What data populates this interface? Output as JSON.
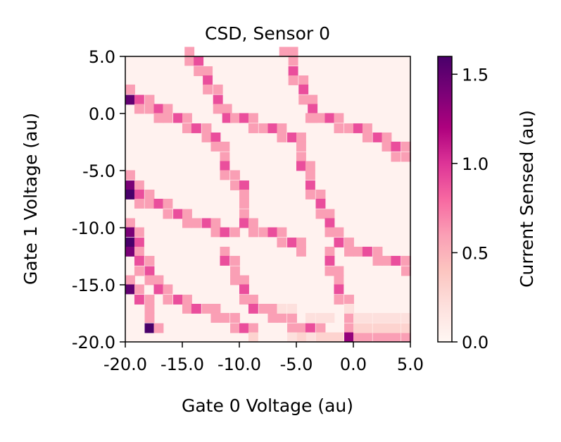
{
  "chart_data": {
    "type": "heatmap",
    "title": "CSD, Sensor 0",
    "xlabel": "Gate 0 Voltage (au)",
    "ylabel": "Gate 1 Voltage (au)",
    "x_range": [
      -20.0,
      5.0
    ],
    "y_range": [
      -20.0,
      5.0
    ],
    "x_ticks": [
      "-20.0",
      "-15.0",
      "-10.0",
      "-5.0",
      "0.0",
      "5.0"
    ],
    "y_ticks": [
      "-20.0",
      "-15.0",
      "-10.0",
      "-5.0",
      "0.0",
      "5.0"
    ],
    "grid": false,
    "colormap": "RdPu",
    "colorbar": {
      "label": "Current Sensed (au)",
      "range": [
        0.0,
        1.6
      ],
      "ticks": [
        "0.0",
        "0.5",
        "1.0",
        "1.5"
      ],
      "stops": [
        "#fff7f3",
        "#fde0dd",
        "#fcc5c0",
        "#fa9fb5",
        "#f768a1",
        "#dd3497",
        "#ae017e",
        "#7a0177",
        "#49006a"
      ]
    },
    "cell_size": 0.8333,
    "background_value": 0.04,
    "cells": [
      [
        -14.8,
        5.0,
        0.6
      ],
      [
        -14.8,
        4.2,
        0.6
      ],
      [
        -14.0,
        4.2,
        0.9
      ],
      [
        -14.0,
        3.3,
        0.6
      ],
      [
        -13.2,
        3.3,
        0.6
      ],
      [
        -13.2,
        2.5,
        0.9
      ],
      [
        -13.2,
        1.7,
        0.6
      ],
      [
        -12.3,
        1.7,
        0.6
      ],
      [
        -12.3,
        0.8,
        0.9
      ],
      [
        -12.3,
        0.0,
        0.6
      ],
      [
        -11.5,
        0.0,
        0.6
      ],
      [
        -11.5,
        -0.8,
        0.9
      ],
      [
        -10.7,
        -0.8,
        0.6
      ],
      [
        -6.5,
        5.0,
        0.6
      ],
      [
        -5.7,
        5.0,
        0.6
      ],
      [
        -5.7,
        4.2,
        0.6
      ],
      [
        -5.7,
        3.3,
        0.9
      ],
      [
        -5.7,
        2.5,
        0.6
      ],
      [
        -4.8,
        2.5,
        0.6
      ],
      [
        -4.8,
        1.7,
        0.9
      ],
      [
        -4.8,
        0.8,
        0.6
      ],
      [
        -4.0,
        0.8,
        0.6
      ],
      [
        -4.0,
        0.0,
        0.9
      ],
      [
        -4.0,
        -0.8,
        0.6
      ],
      [
        -20.0,
        1.7,
        0.6
      ],
      [
        -20.0,
        0.8,
        1.5
      ],
      [
        -19.2,
        0.8,
        0.9
      ],
      [
        -18.3,
        0.8,
        0.6
      ],
      [
        -19.2,
        0.0,
        0.6
      ],
      [
        -18.3,
        0.0,
        0.6
      ],
      [
        -17.5,
        0.0,
        0.9
      ],
      [
        -16.7,
        0.0,
        0.6
      ],
      [
        -17.5,
        -0.8,
        0.6
      ],
      [
        -16.7,
        -0.8,
        0.6
      ],
      [
        -15.8,
        -0.8,
        0.9
      ],
      [
        -15.0,
        -0.8,
        0.6
      ],
      [
        -15.0,
        -1.7,
        0.6
      ],
      [
        -14.2,
        -1.7,
        0.9
      ],
      [
        -13.3,
        -1.7,
        0.6
      ],
      [
        -13.3,
        -2.5,
        0.6
      ],
      [
        -12.5,
        -2.5,
        0.9
      ],
      [
        -12.5,
        -3.3,
        0.6
      ],
      [
        -11.7,
        -3.3,
        0.6
      ],
      [
        -10.8,
        -0.8,
        0.6
      ],
      [
        -10.0,
        -0.8,
        0.9
      ],
      [
        -9.2,
        -0.8,
        0.6
      ],
      [
        -9.2,
        -1.7,
        0.6
      ],
      [
        -8.3,
        -1.7,
        0.6
      ],
      [
        -7.5,
        -1.7,
        0.9
      ],
      [
        -6.7,
        -1.7,
        0.6
      ],
      [
        -6.7,
        -2.5,
        0.6
      ],
      [
        -5.8,
        -2.5,
        0.9
      ],
      [
        -5.0,
        -2.5,
        0.6
      ],
      [
        -5.0,
        -3.3,
        0.6
      ],
      [
        -4.2,
        -0.8,
        0.6
      ],
      [
        -3.3,
        -0.8,
        0.6
      ],
      [
        -2.5,
        -0.8,
        0.9
      ],
      [
        -1.7,
        -0.8,
        0.6
      ],
      [
        -1.7,
        -1.7,
        0.6
      ],
      [
        -0.8,
        -1.7,
        0.6
      ],
      [
        0.0,
        -1.7,
        0.9
      ],
      [
        0.8,
        -1.7,
        0.6
      ],
      [
        0.8,
        -2.5,
        0.6
      ],
      [
        1.7,
        -2.5,
        0.9
      ],
      [
        2.5,
        -2.5,
        0.6
      ],
      [
        2.5,
        -3.3,
        0.6
      ],
      [
        3.3,
        -3.3,
        0.9
      ],
      [
        4.2,
        -3.3,
        0.6
      ],
      [
        3.3,
        -4.2,
        0.6
      ],
      [
        4.2,
        -4.2,
        0.6
      ],
      [
        -11.7,
        -4.2,
        0.6
      ],
      [
        -11.7,
        -5.0,
        0.9
      ],
      [
        -11.7,
        -5.8,
        0.6
      ],
      [
        -10.8,
        -5.8,
        0.6
      ],
      [
        -10.8,
        -6.7,
        0.6
      ],
      [
        -10.0,
        -6.7,
        0.9
      ],
      [
        -10.0,
        -7.5,
        0.6
      ],
      [
        -10.0,
        -8.3,
        0.6
      ],
      [
        -5.0,
        -4.2,
        0.6
      ],
      [
        -5.0,
        -5.0,
        0.9
      ],
      [
        -4.2,
        -5.0,
        0.6
      ],
      [
        -4.2,
        -5.8,
        0.6
      ],
      [
        -4.2,
        -6.7,
        0.9
      ],
      [
        -4.2,
        -7.5,
        0.6
      ],
      [
        -3.3,
        -7.5,
        0.6
      ],
      [
        -3.3,
        -8.3,
        0.9
      ],
      [
        -3.3,
        -9.2,
        0.6
      ],
      [
        -2.5,
        -9.2,
        0.6
      ],
      [
        -2.5,
        -10.0,
        0.9
      ],
      [
        -2.5,
        -10.8,
        0.6
      ],
      [
        -20.0,
        -5.8,
        0.6
      ],
      [
        -20.0,
        -6.7,
        1.4
      ],
      [
        -19.2,
        -6.7,
        0.6
      ],
      [
        -20.0,
        -7.5,
        1.6
      ],
      [
        -19.2,
        -7.5,
        0.9
      ],
      [
        -18.3,
        -7.5,
        0.6
      ],
      [
        -19.2,
        -8.3,
        0.6
      ],
      [
        -18.3,
        -8.3,
        0.6
      ],
      [
        -17.5,
        -8.3,
        0.9
      ],
      [
        -16.7,
        -8.3,
        0.6
      ],
      [
        -16.7,
        -9.2,
        0.6
      ],
      [
        -15.8,
        -9.2,
        0.9
      ],
      [
        -15.0,
        -9.2,
        0.6
      ],
      [
        -15.0,
        -10.0,
        0.6
      ],
      [
        -14.2,
        -10.0,
        0.6
      ],
      [
        -13.3,
        -10.0,
        0.9
      ],
      [
        -12.5,
        -10.0,
        0.6
      ],
      [
        -12.5,
        -10.8,
        0.6
      ],
      [
        -11.7,
        -10.8,
        0.9
      ],
      [
        -10.8,
        -10.8,
        0.6
      ],
      [
        -10.0,
        -9.2,
        0.6
      ],
      [
        -10.0,
        -10.0,
        0.9
      ],
      [
        -9.2,
        -10.0,
        0.6
      ],
      [
        -9.2,
        -10.8,
        0.6
      ],
      [
        -8.3,
        -10.8,
        0.6
      ],
      [
        -7.5,
        -10.8,
        0.9
      ],
      [
        -6.7,
        -10.8,
        0.6
      ],
      [
        -6.7,
        -11.7,
        0.6
      ],
      [
        -5.8,
        -11.7,
        0.9
      ],
      [
        -5.0,
        -11.7,
        0.6
      ],
      [
        -5.0,
        -12.5,
        0.6
      ],
      [
        -1.7,
        -10.8,
        0.6
      ],
      [
        -1.7,
        -11.7,
        0.9
      ],
      [
        -0.8,
        -11.7,
        0.6
      ],
      [
        -0.8,
        -12.5,
        0.6
      ],
      [
        0.0,
        -12.5,
        0.6
      ],
      [
        0.8,
        -12.5,
        0.9
      ],
      [
        1.7,
        -12.5,
        0.6
      ],
      [
        1.7,
        -13.3,
        0.6
      ],
      [
        2.5,
        -13.3,
        0.6
      ],
      [
        3.3,
        -13.3,
        0.9
      ],
      [
        4.2,
        -13.3,
        0.6
      ],
      [
        4.2,
        -14.2,
        0.6
      ],
      [
        -20.0,
        -10.0,
        0.6
      ],
      [
        -20.0,
        -10.8,
        1.4
      ],
      [
        -19.2,
        -10.8,
        0.6
      ],
      [
        -20.0,
        -11.7,
        1.6
      ],
      [
        -19.2,
        -11.7,
        0.9
      ],
      [
        -20.0,
        -12.5,
        1.4
      ],
      [
        -19.2,
        -12.5,
        0.6
      ],
      [
        -19.2,
        -13.3,
        0.9
      ],
      [
        -18.3,
        -13.3,
        0.6
      ],
      [
        -19.2,
        -14.2,
        0.6
      ],
      [
        -18.3,
        -14.2,
        0.9
      ],
      [
        -18.3,
        -15.0,
        0.6
      ],
      [
        -17.5,
        -15.0,
        0.6
      ],
      [
        -17.5,
        -15.8,
        0.9
      ],
      [
        -16.7,
        -15.8,
        0.6
      ],
      [
        -16.7,
        -16.7,
        0.6
      ],
      [
        -15.8,
        -16.7,
        0.9
      ],
      [
        -15.0,
        -16.7,
        0.6
      ],
      [
        -15.0,
        -17.5,
        0.6
      ],
      [
        -14.2,
        -17.5,
        0.9
      ],
      [
        -13.3,
        -17.5,
        0.6
      ],
      [
        -12.5,
        -17.5,
        0.6
      ],
      [
        -12.5,
        -18.3,
        0.6
      ],
      [
        -11.7,
        -18.3,
        0.6
      ],
      [
        -10.8,
        -18.3,
        0.6
      ],
      [
        -10.8,
        -19.2,
        0.6
      ],
      [
        -10.0,
        -19.2,
        0.9
      ],
      [
        -9.2,
        -19.2,
        0.6
      ],
      [
        -9.2,
        -20.0,
        0.3
      ],
      [
        -11.7,
        -12.5,
        0.6
      ],
      [
        -11.7,
        -13.3,
        0.9
      ],
      [
        -10.8,
        -13.3,
        0.6
      ],
      [
        -10.8,
        -14.2,
        0.6
      ],
      [
        -10.8,
        -15.0,
        0.6
      ],
      [
        -10.0,
        -15.0,
        0.6
      ],
      [
        -10.0,
        -15.8,
        0.9
      ],
      [
        -10.0,
        -16.7,
        0.6
      ],
      [
        -9.2,
        -16.7,
        0.6
      ],
      [
        -9.2,
        -17.5,
        0.9
      ],
      [
        -8.3,
        -17.5,
        0.6
      ],
      [
        -7.5,
        -17.5,
        0.6
      ],
      [
        -7.5,
        -18.3,
        0.6
      ],
      [
        -6.7,
        -18.3,
        0.6
      ],
      [
        -5.8,
        -18.3,
        0.6
      ],
      [
        -5.8,
        -19.2,
        0.6
      ],
      [
        -5.0,
        -19.2,
        0.6
      ],
      [
        -4.2,
        -19.2,
        0.9
      ],
      [
        -3.3,
        -19.2,
        0.6
      ],
      [
        -3.3,
        -20.0,
        0.3
      ],
      [
        -2.5,
        -20.0,
        0.3
      ],
      [
        -1.7,
        -20.0,
        0.3
      ],
      [
        -0.8,
        -20.0,
        0.3
      ],
      [
        -2.5,
        -12.5,
        0.6
      ],
      [
        -2.5,
        -13.3,
        0.9
      ],
      [
        -2.5,
        -14.2,
        0.6
      ],
      [
        -1.7,
        -14.2,
        0.6
      ],
      [
        -1.7,
        -15.0,
        0.6
      ],
      [
        -1.7,
        -15.8,
        0.9
      ],
      [
        -1.7,
        -16.7,
        0.6
      ],
      [
        -0.8,
        -16.7,
        0.6
      ],
      [
        -0.8,
        -17.5,
        0.6
      ],
      [
        -0.8,
        -18.3,
        0.6
      ],
      [
        -0.8,
        -19.2,
        0.6
      ],
      [
        -0.8,
        -20.0,
        1.3
      ],
      [
        0.0,
        -20.0,
        0.6
      ],
      [
        -20.0,
        -15.0,
        0.6
      ],
      [
        -20.0,
        -15.8,
        1.5
      ],
      [
        -19.2,
        -15.8,
        0.6
      ],
      [
        -19.2,
        -16.7,
        0.9
      ],
      [
        -18.3,
        -16.7,
        0.6
      ],
      [
        -18.3,
        -17.5,
        0.6
      ],
      [
        -18.3,
        -18.3,
        0.6
      ],
      [
        -18.3,
        -19.2,
        1.6
      ],
      [
        -17.5,
        -19.2,
        0.6
      ],
      [
        -6.7,
        -17.5,
        0.2
      ],
      [
        -5.8,
        -17.5,
        0.2
      ],
      [
        -0.8,
        -17.5,
        0.2
      ],
      [
        0.0,
        -18.3,
        0.2
      ],
      [
        0.8,
        -18.3,
        0.2
      ],
      [
        1.7,
        -18.3,
        0.2
      ],
      [
        2.5,
        -18.3,
        0.2
      ],
      [
        3.3,
        -18.3,
        0.2
      ],
      [
        4.2,
        -18.3,
        0.2
      ],
      [
        -4.2,
        -18.3,
        0.2
      ],
      [
        -3.3,
        -18.3,
        0.2
      ],
      [
        -2.5,
        -18.3,
        0.2
      ],
      [
        -4.2,
        -20.0,
        0.2
      ],
      [
        -5.0,
        -20.0,
        0.3
      ],
      [
        -5.8,
        -20.0,
        0.2
      ],
      [
        0.8,
        -20.0,
        0.6
      ],
      [
        1.7,
        -20.0,
        0.6
      ],
      [
        2.5,
        -20.0,
        0.6
      ],
      [
        3.3,
        -20.0,
        0.6
      ],
      [
        4.2,
        -20.0,
        0.6
      ],
      [
        0.8,
        -19.2,
        0.3
      ],
      [
        1.7,
        -19.2,
        0.3
      ],
      [
        2.5,
        -19.2,
        0.3
      ],
      [
        3.3,
        -19.2,
        0.3
      ],
      [
        4.2,
        -19.2,
        0.3
      ],
      [
        0.0,
        -19.2,
        0.3
      ]
    ]
  }
}
